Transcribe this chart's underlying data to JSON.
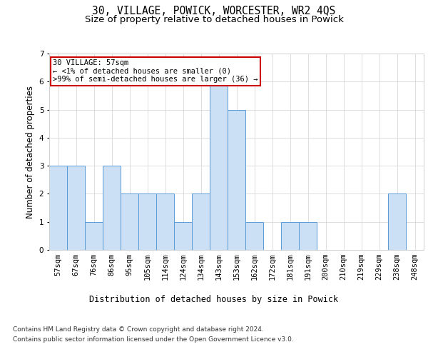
{
  "title": "30, VILLAGE, POWICK, WORCESTER, WR2 4QS",
  "subtitle": "Size of property relative to detached houses in Powick",
  "xlabel": "Distribution of detached houses by size in Powick",
  "ylabel": "Number of detached properties",
  "categories": [
    "57sqm",
    "67sqm",
    "76sqm",
    "86sqm",
    "95sqm",
    "105sqm",
    "114sqm",
    "124sqm",
    "134sqm",
    "143sqm",
    "153sqm",
    "162sqm",
    "172sqm",
    "181sqm",
    "191sqm",
    "200sqm",
    "210sqm",
    "219sqm",
    "229sqm",
    "238sqm",
    "248sqm"
  ],
  "values": [
    3,
    3,
    1,
    3,
    2,
    2,
    2,
    1,
    2,
    6,
    5,
    1,
    0,
    1,
    1,
    0,
    0,
    0,
    0,
    2,
    0
  ],
  "bar_color": "#cce0f5",
  "bar_edge_color": "#5b9bd5",
  "background_color": "#ffffff",
  "grid_color": "#d0d0d0",
  "annotation_text": "30 VILLAGE: 57sqm\n← <1% of detached houses are smaller (0)\n>99% of semi-detached houses are larger (36) →",
  "annotation_box_edge_color": "#cc0000",
  "ylim": [
    0,
    7
  ],
  "yticks": [
    0,
    1,
    2,
    3,
    4,
    5,
    6,
    7
  ],
  "footer_line1": "Contains HM Land Registry data © Crown copyright and database right 2024.",
  "footer_line2": "Contains public sector information licensed under the Open Government Licence v3.0.",
  "title_fontsize": 10.5,
  "subtitle_fontsize": 9.5,
  "xlabel_fontsize": 8.5,
  "ylabel_fontsize": 8.5,
  "tick_fontsize": 7.5,
  "annotation_fontsize": 7.5,
  "footer_fontsize": 6.5
}
